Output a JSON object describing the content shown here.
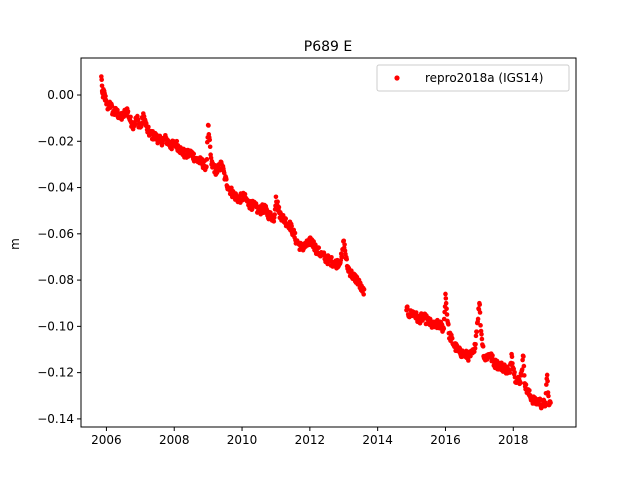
{
  "chart_data": {
    "type": "scatter",
    "title": "P689 E",
    "xlabel": "",
    "ylabel": "m",
    "xlim": [
      2005.25,
      2019.85
    ],
    "ylim": [
      -0.1435,
      0.016
    ],
    "xticks": [
      2006,
      2008,
      2010,
      2012,
      2014,
      2016,
      2018
    ],
    "xtick_labels": [
      "2006",
      "2008",
      "2010",
      "2012",
      "2014",
      "2016",
      "2018"
    ],
    "yticks": [
      0.0,
      -0.02,
      -0.04,
      -0.06,
      -0.08,
      -0.1,
      -0.12,
      -0.14
    ],
    "ytick_labels": [
      "0.00",
      "−0.02",
      "−0.04",
      "−0.06",
      "−0.08",
      "−0.10",
      "−0.12",
      "−0.14"
    ],
    "grid": false,
    "legend_position": "top-right",
    "series": [
      {
        "name": "repro2018a (IGS14)",
        "color": "#ff0000",
        "marker": "circle",
        "points": [
          [
            2005.85,
            0.008
          ],
          [
            2005.87,
            0.004
          ],
          [
            2005.88,
            0.001
          ],
          [
            2005.9,
            -0.001
          ],
          [
            2005.92,
            0.002
          ],
          [
            2006.0,
            -0.004
          ],
          [
            2006.05,
            -0.006
          ],
          [
            2006.1,
            -0.003
          ],
          [
            2006.2,
            -0.008
          ],
          [
            2006.3,
            -0.007
          ],
          [
            2006.4,
            -0.01
          ],
          [
            2006.5,
            -0.009
          ],
          [
            2006.6,
            -0.006
          ],
          [
            2006.7,
            -0.011
          ],
          [
            2006.8,
            -0.013
          ],
          [
            2006.9,
            -0.01
          ],
          [
            2007.0,
            -0.014
          ],
          [
            2007.1,
            -0.009
          ],
          [
            2007.2,
            -0.015
          ],
          [
            2007.3,
            -0.017
          ],
          [
            2007.45,
            -0.018
          ],
          [
            2007.6,
            -0.02
          ],
          [
            2007.75,
            -0.019
          ],
          [
            2007.9,
            -0.022
          ],
          [
            2008.05,
            -0.021
          ],
          [
            2008.2,
            -0.024
          ],
          [
            2008.35,
            -0.026
          ],
          [
            2008.5,
            -0.025
          ],
          [
            2008.65,
            -0.028
          ],
          [
            2008.8,
            -0.029
          ],
          [
            2008.95,
            -0.031
          ],
          [
            2009.0,
            -0.013
          ],
          [
            2009.02,
            -0.017
          ],
          [
            2009.1,
            -0.03
          ],
          [
            2009.25,
            -0.033
          ],
          [
            2009.4,
            -0.03
          ],
          [
            2009.5,
            -0.036
          ],
          [
            2009.6,
            -0.04
          ],
          [
            2009.75,
            -0.043
          ],
          [
            2009.9,
            -0.045
          ],
          [
            2010.05,
            -0.044
          ],
          [
            2010.2,
            -0.047
          ],
          [
            2010.35,
            -0.048
          ],
          [
            2010.5,
            -0.05
          ],
          [
            2010.65,
            -0.049
          ],
          [
            2010.8,
            -0.052
          ],
          [
            2010.95,
            -0.053
          ],
          [
            2011.0,
            -0.044
          ],
          [
            2011.1,
            -0.051
          ],
          [
            2011.25,
            -0.054
          ],
          [
            2011.4,
            -0.056
          ],
          [
            2011.5,
            -0.059
          ],
          [
            2011.6,
            -0.063
          ],
          [
            2011.75,
            -0.066
          ],
          [
            2011.9,
            -0.065
          ],
          [
            2012.05,
            -0.063
          ],
          [
            2012.2,
            -0.067
          ],
          [
            2012.35,
            -0.069
          ],
          [
            2012.5,
            -0.071
          ],
          [
            2012.65,
            -0.072
          ],
          [
            2012.8,
            -0.073
          ],
          [
            2012.95,
            -0.07
          ],
          [
            2013.0,
            -0.063
          ],
          [
            2013.1,
            -0.074
          ],
          [
            2013.25,
            -0.078
          ],
          [
            2013.4,
            -0.08
          ],
          [
            2013.5,
            -0.083
          ],
          [
            2013.55,
            -0.085
          ],
          [
            2013.6,
            -0.084
          ],
          [
            2014.85,
            -0.093
          ],
          [
            2014.95,
            -0.095
          ],
          [
            2015.05,
            -0.094
          ],
          [
            2015.2,
            -0.097
          ],
          [
            2015.35,
            -0.096
          ],
          [
            2015.5,
            -0.098
          ],
          [
            2015.65,
            -0.1
          ],
          [
            2015.8,
            -0.099
          ],
          [
            2015.95,
            -0.101
          ],
          [
            2016.0,
            -0.086
          ],
          [
            2016.02,
            -0.09
          ],
          [
            2016.1,
            -0.103
          ],
          [
            2016.25,
            -0.108
          ],
          [
            2016.4,
            -0.111
          ],
          [
            2016.55,
            -0.112
          ],
          [
            2016.7,
            -0.113
          ],
          [
            2016.85,
            -0.111
          ],
          [
            2017.0,
            -0.09
          ],
          [
            2017.02,
            -0.094
          ],
          [
            2017.05,
            -0.102
          ],
          [
            2017.15,
            -0.114
          ],
          [
            2017.3,
            -0.112
          ],
          [
            2017.45,
            -0.116
          ],
          [
            2017.6,
            -0.117
          ],
          [
            2017.75,
            -0.118
          ],
          [
            2017.9,
            -0.12
          ],
          [
            2017.95,
            -0.112
          ],
          [
            2018.05,
            -0.122
          ],
          [
            2018.2,
            -0.124
          ],
          [
            2018.3,
            -0.113
          ],
          [
            2018.35,
            -0.126
          ],
          [
            2018.45,
            -0.129
          ],
          [
            2018.55,
            -0.131
          ],
          [
            2018.65,
            -0.133
          ],
          [
            2018.75,
            -0.132
          ],
          [
            2018.85,
            -0.134
          ],
          [
            2018.95,
            -0.133
          ],
          [
            2019.0,
            -0.121
          ],
          [
            2019.05,
            -0.134
          ],
          [
            2019.1,
            -0.133
          ]
        ]
      }
    ]
  }
}
